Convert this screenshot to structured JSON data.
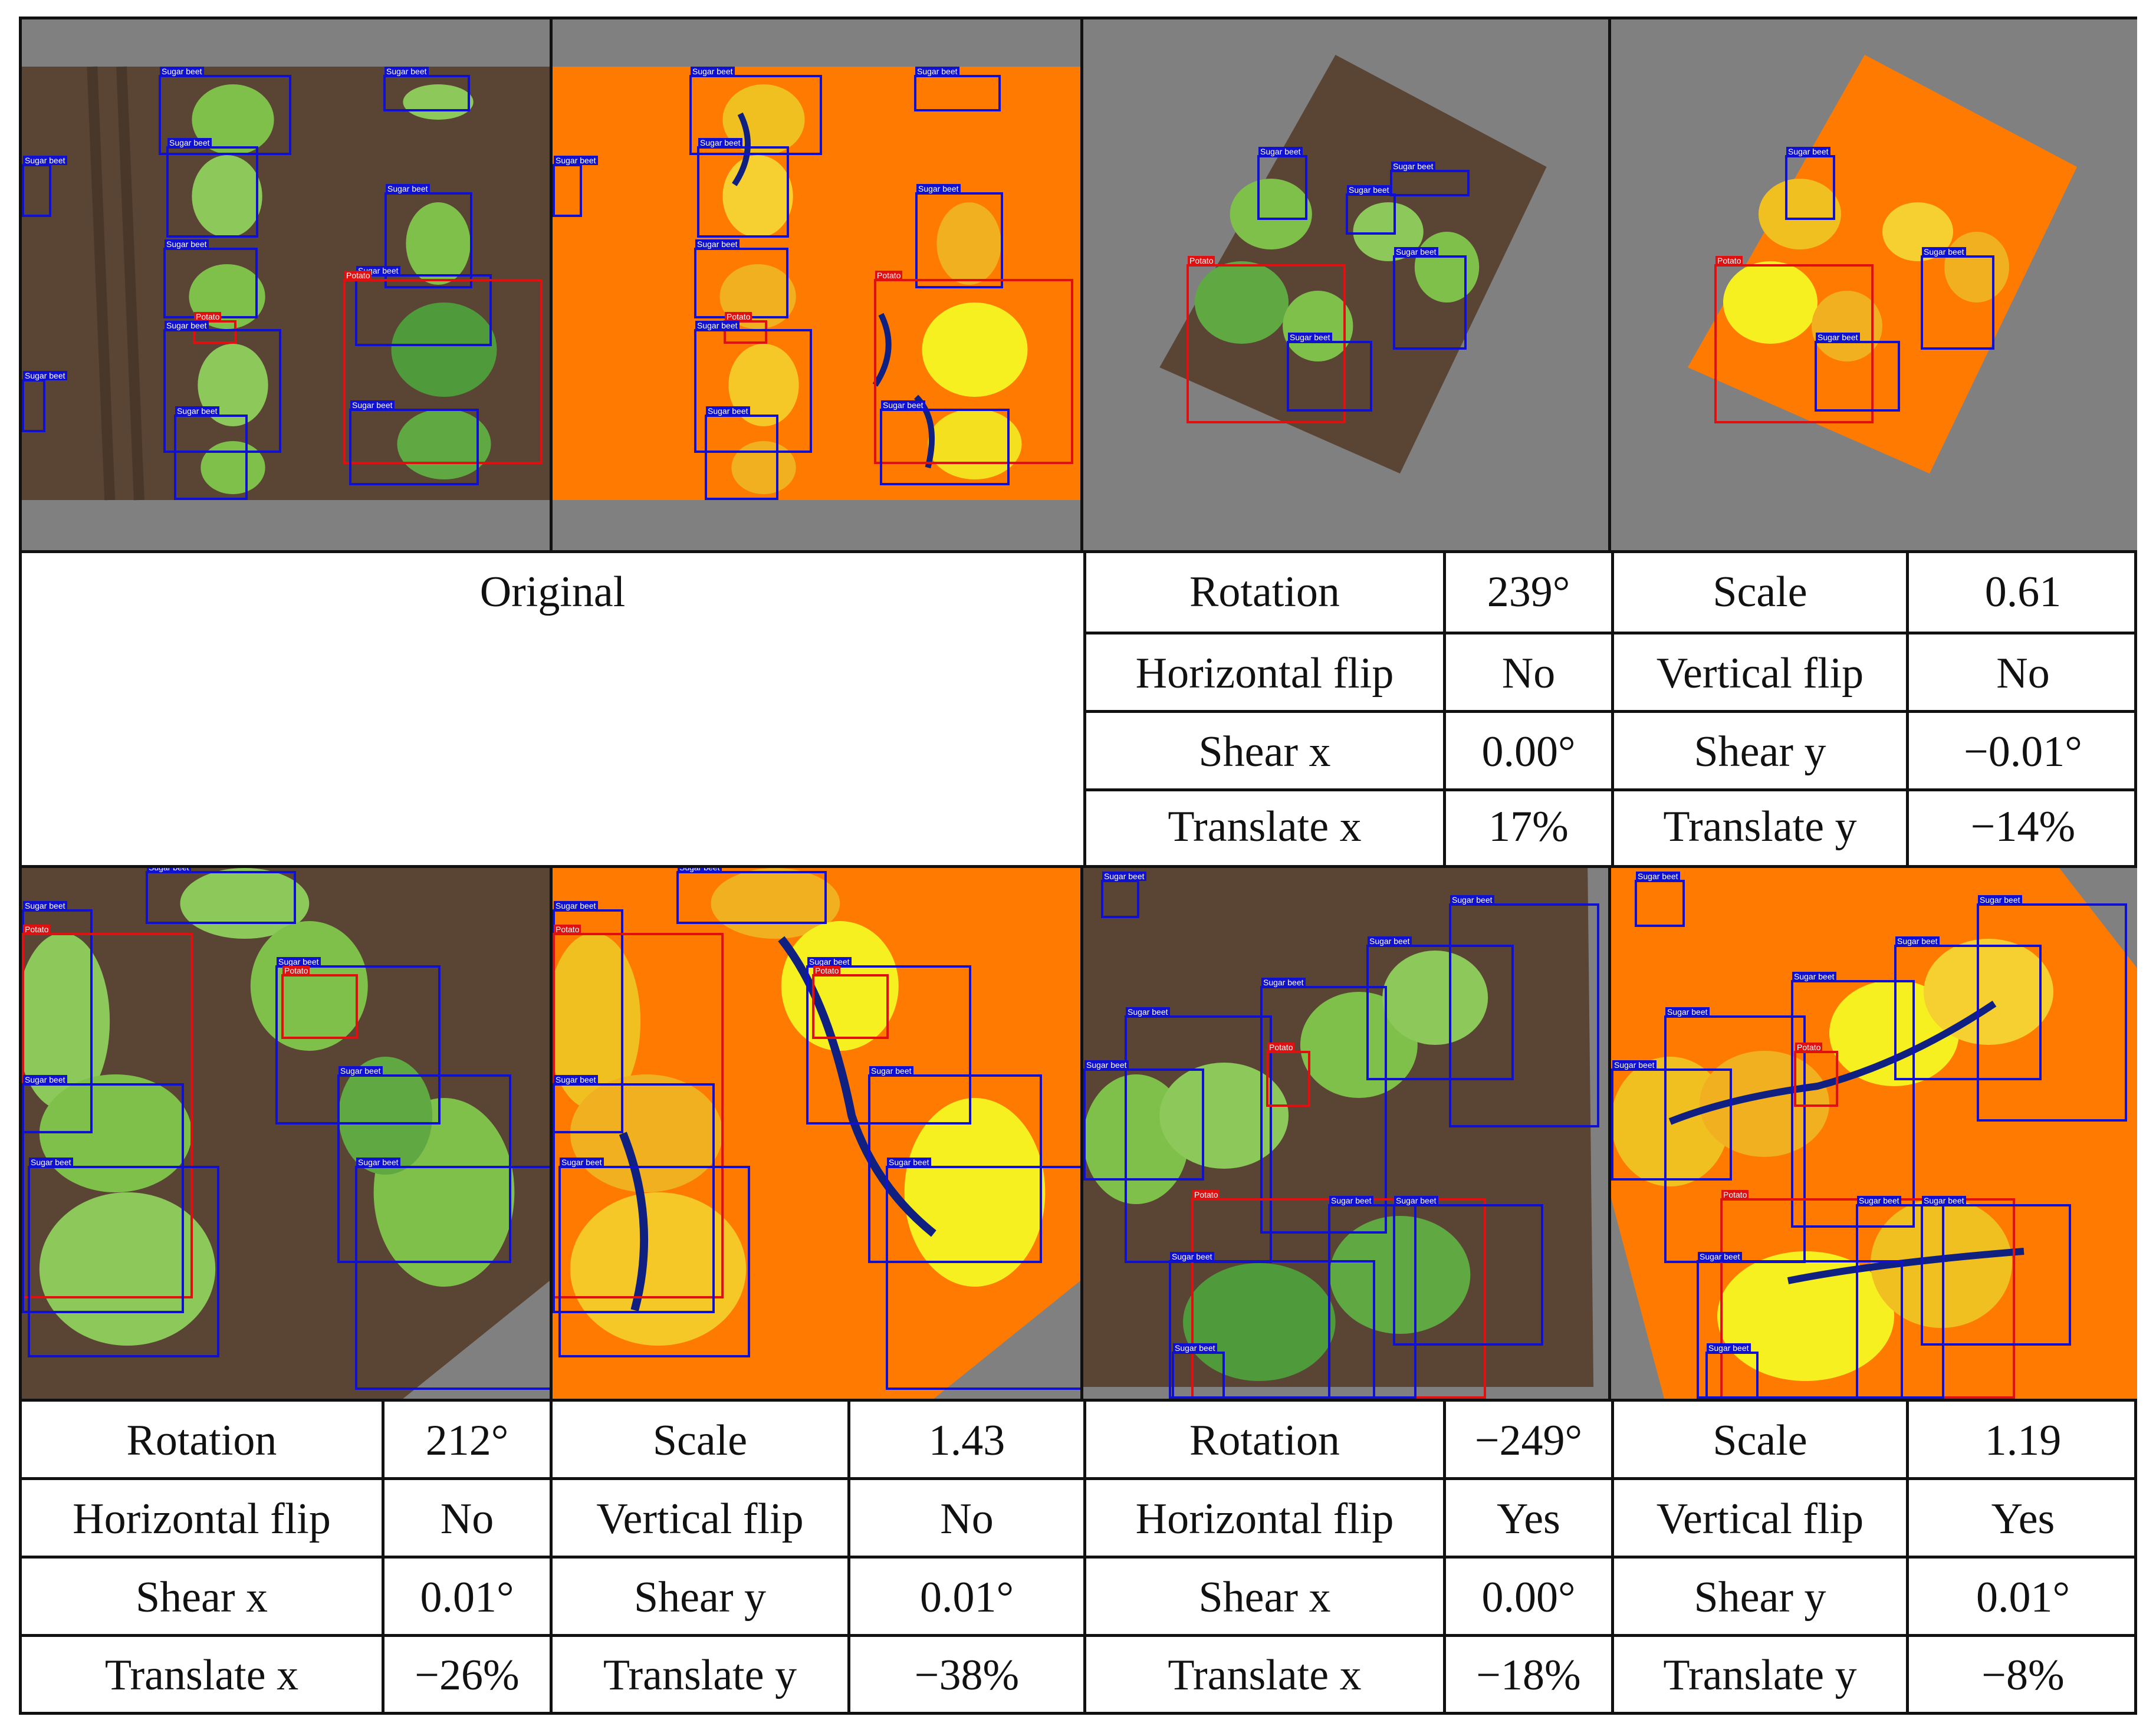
{
  "labels": {
    "sugar_beet": "Sugar beet",
    "potato": "Potato"
  },
  "original_caption": "Original",
  "top_params": {
    "rotation_label": "Rotation",
    "rotation_value": "239°",
    "scale_label": "Scale",
    "scale_value": "0.61",
    "hflip_label": "Horizontal flip",
    "hflip_value": "No",
    "vflip_label": "Vertical flip",
    "vflip_value": "No",
    "shearx_label": "Shear x",
    "shearx_value": "0.00°",
    "sheary_label": "Shear y",
    "sheary_value": "−0.01°",
    "transx_label": "Translate x",
    "transx_value": "17%",
    "transy_label": "Translate y",
    "transy_value": "−14%"
  },
  "bottom_left_params": {
    "rotation_label": "Rotation",
    "rotation_value": "212°",
    "scale_label": "Scale",
    "scale_value": "1.43",
    "hflip_label": "Horizontal flip",
    "hflip_value": "No",
    "vflip_label": "Vertical flip",
    "vflip_value": "No",
    "shearx_label": "Shear x",
    "shearx_value": "0.01°",
    "sheary_label": "Shear y",
    "sheary_value": "0.01°",
    "transx_label": "Translate x",
    "transx_value": "−26%",
    "transy_label": "Translate y",
    "transy_value": "−38%"
  },
  "bottom_right_params": {
    "rotation_label": "Rotation",
    "rotation_value": "−249°",
    "scale_label": "Scale",
    "scale_value": "1.19",
    "hflip_label": "Horizontal flip",
    "hflip_value": "Yes",
    "vflip_label": "Vertical flip",
    "vflip_value": "Yes",
    "shearx_label": "Shear x",
    "shearx_value": "0.00°",
    "sheary_label": "Shear y",
    "sheary_value": "0.01°",
    "transx_label": "Translate x",
    "transx_value": "−18%",
    "transy_label": "Translate y",
    "transy_value": "−8%"
  },
  "colors": {
    "sugar_beet_box": "#1010d0",
    "potato_box": "#e01010",
    "padding_gray": "#808080",
    "soil": "#5a4535",
    "leaf": "#7fc04a",
    "depth_far": "#ff7a00",
    "depth_near": "#f7f020",
    "depth_shadow": "#102080"
  }
}
